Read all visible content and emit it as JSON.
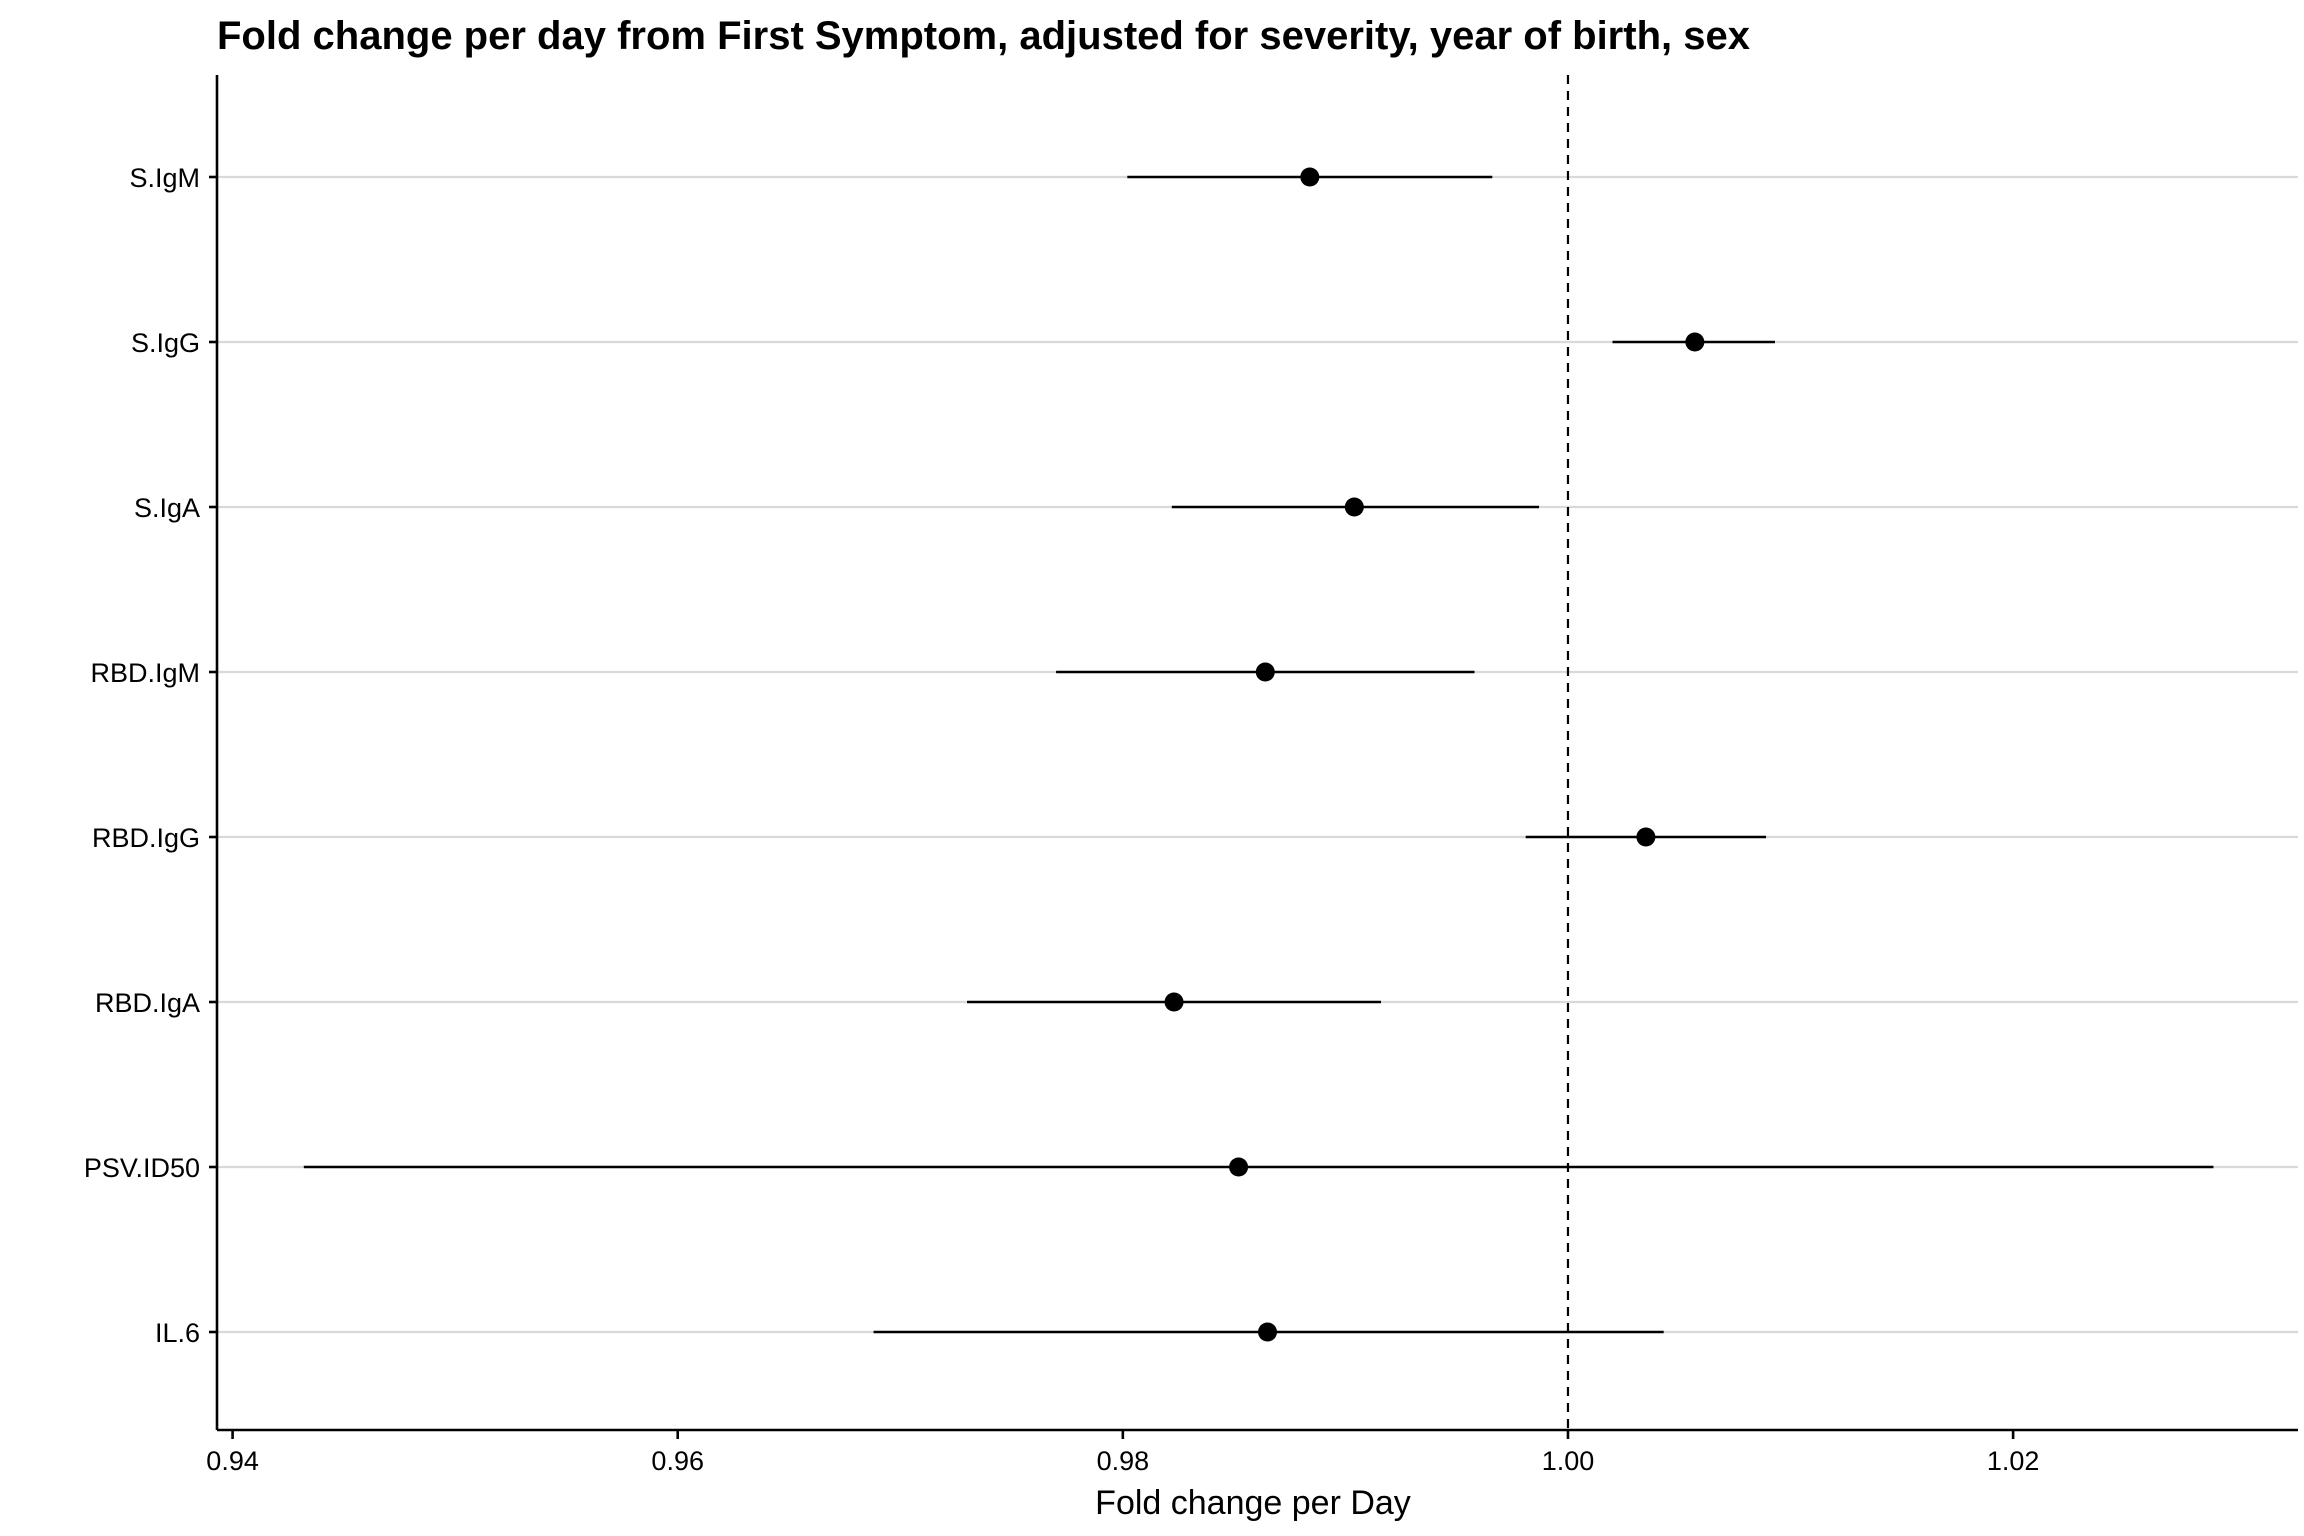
{
  "chart_data": {
    "type": "forest",
    "title": "Fold change per day from First Symptom, adjusted for severity, year of birth, sex",
    "xlabel": "Fold change per Day",
    "ylabel": "",
    "xlim": [
      0.9393,
      1.0328
    ],
    "xticks": [
      0.94,
      0.96,
      0.98,
      1.0,
      1.02
    ],
    "xtick_labels": [
      "0.94",
      "0.96",
      "0.98",
      "1.00",
      "1.02"
    ],
    "reference_line": 1.0,
    "grid": "horizontal",
    "categories": [
      "S.IgM",
      "S.IgG",
      "S.IgA",
      "RBD.IgM",
      "RBD.IgG",
      "RBD.IgA",
      "PSV.ID50",
      "IL.6"
    ],
    "estimates": [
      0.9884,
      1.0057,
      0.9904,
      0.9864,
      1.0035,
      0.9823,
      0.9852,
      0.9865
    ],
    "lower": [
      0.9802,
      1.002,
      0.9822,
      0.977,
      0.9981,
      0.973,
      0.9432,
      0.9688
    ],
    "upper": [
      0.9966,
      1.0093,
      0.9987,
      0.9958,
      1.0089,
      0.9916,
      1.029,
      1.0043
    ]
  }
}
